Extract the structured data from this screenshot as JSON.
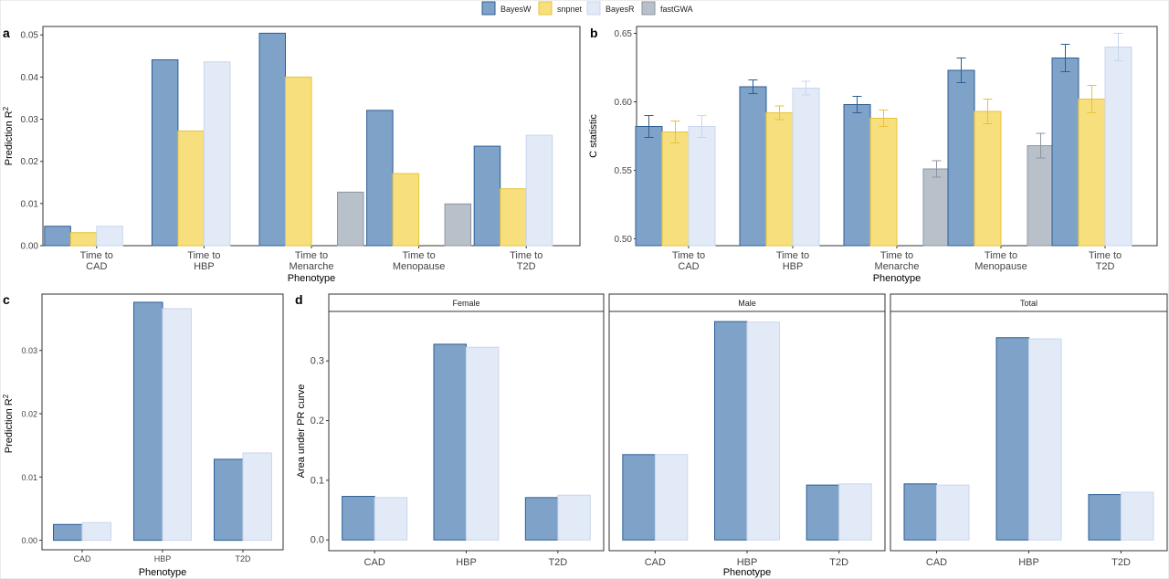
{
  "legend": {
    "items": [
      {
        "label": "BayesW",
        "fill": "#7fa3c8",
        "stroke": "#2c5d93"
      },
      {
        "label": "snpnet",
        "fill": "#f6df7c",
        "stroke": "#e8c33a"
      },
      {
        "label": "BayesR",
        "fill": "#e2eaf7",
        "stroke": "#c9d6ec"
      },
      {
        "label": "fastGWA",
        "fill": "#b8c0c9",
        "stroke": "#8c96a1"
      }
    ]
  },
  "chart_data": [
    {
      "panel": "a",
      "type": "bar",
      "categories": [
        "Time to\nCAD",
        "Time to\nHBP",
        "Time to\nMenarche",
        "Time to\nMenopause",
        "Time to\nT2D"
      ],
      "xlabel": "Phenotype",
      "ylabel": "Prediction R2",
      "ylim": [
        0,
        0.052
      ],
      "yticks": [
        0.0,
        0.01,
        0.02,
        0.03,
        0.04,
        0.05
      ],
      "tick_decimals": 2,
      "grid": false,
      "series": [
        {
          "name": "BayesW",
          "values": [
            0.0046,
            0.0441,
            0.0504,
            0.0321,
            0.0236
          ]
        },
        {
          "name": "snpnet",
          "values": [
            0.0031,
            0.0272,
            0.04,
            0.0171,
            0.0135
          ]
        },
        {
          "name": "BayesR",
          "values": [
            0.0046,
            0.0436,
            null,
            null,
            0.0262
          ]
        },
        {
          "name": "fastGWA",
          "values": [
            null,
            null,
            0.0127,
            0.0099,
            null
          ]
        }
      ]
    },
    {
      "panel": "b",
      "type": "bar",
      "categories": [
        "Time to\nCAD",
        "Time to\nHBP",
        "Time to\nMenarche",
        "Time to\nMenopause",
        "Time to\nT2D"
      ],
      "xlabel": "Phenotype",
      "ylabel": "C statistic",
      "ylim": [
        0.495,
        0.655
      ],
      "yticks": [
        0.5,
        0.55,
        0.6,
        0.65
      ],
      "tick_decimals": 2,
      "grid": false,
      "series": [
        {
          "name": "BayesW",
          "values": [
            0.582,
            0.611,
            0.598,
            0.623,
            0.632
          ],
          "err": [
            0.008,
            0.005,
            0.006,
            0.009,
            0.01
          ]
        },
        {
          "name": "snpnet",
          "values": [
            0.578,
            0.592,
            0.588,
            0.593,
            0.602
          ],
          "err": [
            0.008,
            0.005,
            0.006,
            0.009,
            0.01
          ]
        },
        {
          "name": "BayesR",
          "values": [
            0.582,
            0.61,
            null,
            null,
            0.64
          ],
          "err": [
            0.008,
            0.005,
            null,
            null,
            0.01
          ]
        },
        {
          "name": "fastGWA",
          "values": [
            null,
            null,
            0.551,
            0.568,
            null
          ],
          "err": [
            null,
            null,
            0.006,
            0.009,
            null
          ]
        }
      ]
    },
    {
      "panel": "c",
      "type": "bar",
      "categories": [
        "CAD",
        "HBP",
        "T2D"
      ],
      "xlabel": "Phenotype",
      "ylabel": "Prediction R2",
      "ylim": [
        -0.0015,
        0.0389
      ],
      "yticks": [
        0.0,
        0.01,
        0.02,
        0.03
      ],
      "tick_decimals": 2,
      "grid": false,
      "series": [
        {
          "name": "BayesW",
          "values": [
            0.0025,
            0.0376,
            0.0128
          ]
        },
        {
          "name": "BayesR",
          "values": [
            0.0028,
            0.0366,
            0.0138
          ]
        }
      ]
    },
    {
      "panel": "d",
      "type": "bar",
      "facets": [
        "Female",
        "Male",
        "Total"
      ],
      "categories": [
        "CAD",
        "HBP",
        "T2D"
      ],
      "xlabel": "Phenotype",
      "ylabel": "Area under PR curve",
      "ylim": [
        -0.018,
        0.383
      ],
      "yticks": [
        0.0,
        0.1,
        0.2,
        0.3
      ],
      "tick_decimals": 1,
      "grid": false,
      "series": [
        {
          "name": "BayesW",
          "values": [
            [
              0.073,
              0.328,
              0.071
            ],
            [
              0.143,
              0.366,
              0.092
            ],
            [
              0.094,
              0.339,
              0.076
            ]
          ]
        },
        {
          "name": "BayesR",
          "values": [
            [
              0.071,
              0.323,
              0.075
            ],
            [
              0.143,
              0.365,
              0.094
            ],
            [
              0.092,
              0.337,
              0.08
            ]
          ]
        }
      ]
    }
  ]
}
